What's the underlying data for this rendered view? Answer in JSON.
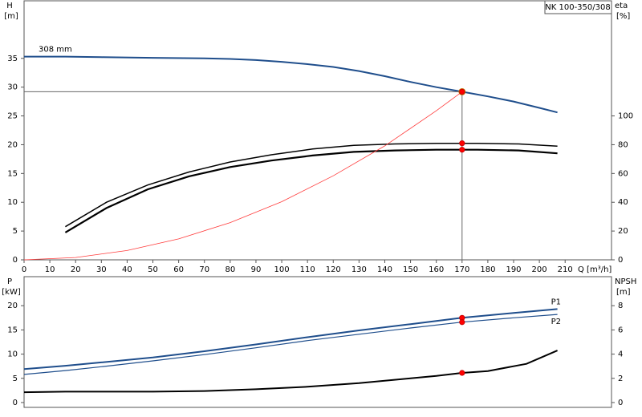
{
  "chart_data": [
    {
      "type": "line",
      "title": "NK 100-350/308",
      "ylabel": "H",
      "yunit": "[m]",
      "y2label": "eta",
      "y2unit": "[%]",
      "xlabel": "Q [m³/h]",
      "xlim": [
        0,
        228
      ],
      "xticks": [
        0,
        10,
        20,
        30,
        40,
        50,
        60,
        70,
        80,
        90,
        100,
        110,
        120,
        130,
        140,
        150,
        160,
        170,
        180,
        190,
        200,
        210
      ],
      "ylim": [
        0,
        45
      ],
      "yticks": [
        0,
        5,
        10,
        15,
        20,
        25,
        30,
        35
      ],
      "y2lim": [
        0,
        180
      ],
      "y2ticks": [
        0,
        20,
        40,
        60,
        80,
        100
      ],
      "highlight_x": 170,
      "crosshair": true,
      "series": [
        {
          "name": "308 mm",
          "color": "#1f4e8c",
          "width": 2,
          "x": [
            0,
            16,
            30,
            50,
            70,
            80,
            90,
            100,
            110,
            120,
            130,
            140,
            150,
            160,
            170,
            180,
            190,
            200,
            207
          ],
          "values": [
            35.3,
            35.3,
            35.2,
            35.1,
            35.0,
            34.9,
            34.7,
            34.4,
            34.0,
            33.5,
            32.8,
            31.9,
            30.9,
            30.0,
            29.2,
            28.4,
            27.5,
            26.4,
            25.6
          ]
        },
        {
          "color": "#000000",
          "width": 1.5,
          "axis": "y2",
          "x": [
            16,
            32,
            48,
            64,
            80,
            96,
            112,
            128,
            144,
            160,
            170,
            176,
            192,
            207
          ],
          "values": [
            23,
            40,
            52,
            61,
            68,
            73,
            77,
            79.5,
            80.5,
            81,
            81,
            81,
            80.5,
            79
          ]
        },
        {
          "color": "#000000",
          "width": 2.2,
          "axis": "y2",
          "x": [
            16,
            32,
            48,
            64,
            80,
            96,
            112,
            128,
            144,
            160,
            170,
            176,
            192,
            207
          ],
          "values": [
            19,
            36,
            49,
            58,
            64.5,
            69,
            72.5,
            75,
            76,
            76.5,
            76.5,
            76.5,
            76,
            74
          ]
        },
        {
          "color": "#ff3b3b",
          "width": 0.8,
          "x": [
            0,
            20,
            40,
            60,
            80,
            100,
            120,
            140,
            160,
            170
          ],
          "values": [
            0,
            0.4,
            1.62,
            3.64,
            6.47,
            10.1,
            14.6,
            19.8,
            25.9,
            29.2
          ]
        }
      ]
    },
    {
      "type": "line",
      "ylabel": "P",
      "yunit": "[kW]",
      "y2label": "NPSH",
      "y2unit": "[m]",
      "xlim": [
        0,
        228
      ],
      "ylim": [
        -1,
        26
      ],
      "yticks": [
        0,
        5,
        10,
        15,
        20
      ],
      "y2lim": [
        -0.4,
        10.4
      ],
      "y2ticks": [
        0,
        2,
        4,
        6,
        8
      ],
      "highlight_x": 170,
      "series": [
        {
          "name": "P1",
          "color": "#1f4e8c",
          "width": 2,
          "x": [
            0,
            16,
            30,
            50,
            70,
            90,
            110,
            130,
            150,
            170,
            190,
            207
          ],
          "values": [
            6.9,
            7.6,
            8.3,
            9.3,
            10.6,
            12.0,
            13.5,
            14.9,
            16.2,
            17.5,
            18.5,
            19.3
          ]
        },
        {
          "name": "P2",
          "color": "#1f4e8c",
          "width": 1.2,
          "x": [
            0,
            16,
            30,
            50,
            70,
            90,
            110,
            130,
            150,
            170,
            190,
            207
          ],
          "values": [
            5.8,
            6.6,
            7.4,
            8.6,
            9.9,
            11.3,
            12.8,
            14.1,
            15.4,
            16.6,
            17.5,
            18.2
          ]
        },
        {
          "color": "#000000",
          "width": 2,
          "axis": "y2",
          "x": [
            0,
            16,
            50,
            70,
            90,
            110,
            130,
            150,
            160,
            170,
            180,
            195,
            207
          ],
          "values": [
            0.85,
            0.9,
            0.9,
            0.95,
            1.1,
            1.3,
            1.6,
            2.0,
            2.2,
            2.45,
            2.6,
            3.2,
            4.3
          ]
        }
      ]
    }
  ]
}
